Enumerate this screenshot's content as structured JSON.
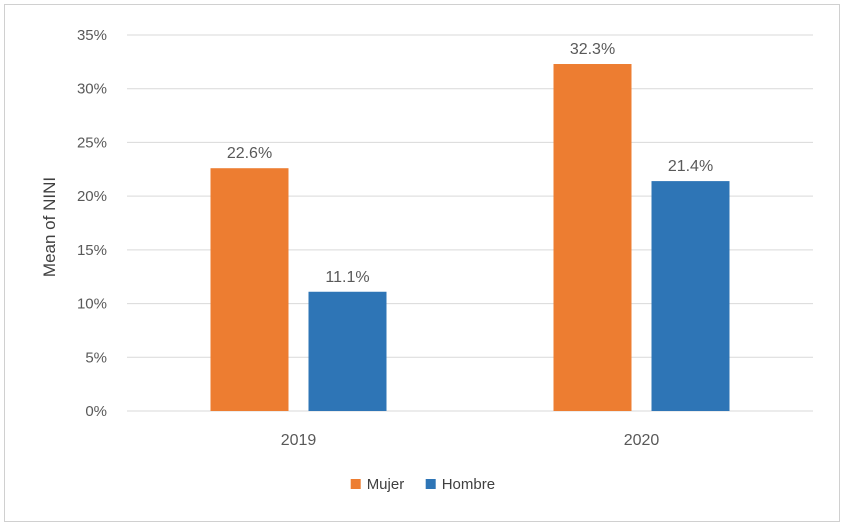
{
  "chart_data": {
    "type": "bar",
    "categories": [
      "2019",
      "2020"
    ],
    "series": [
      {
        "name": "Mujer",
        "color": "#ED7D31",
        "values": [
          22.6,
          32.3
        ],
        "labels": [
          "22.6%",
          "32.3%"
        ]
      },
      {
        "name": "Hombre",
        "color": "#2E75B6",
        "values": [
          11.1,
          21.4
        ],
        "labels": [
          "11.1%",
          "21.4%"
        ]
      }
    ],
    "title": "",
    "xlabel": "",
    "ylabel": "Mean of NINI",
    "ylim": [
      0,
      35
    ],
    "yticks": [
      "0%",
      "5%",
      "10%",
      "15%",
      "20%",
      "25%",
      "30%",
      "35%"
    ],
    "grid": true,
    "legend_position": "bottom"
  }
}
